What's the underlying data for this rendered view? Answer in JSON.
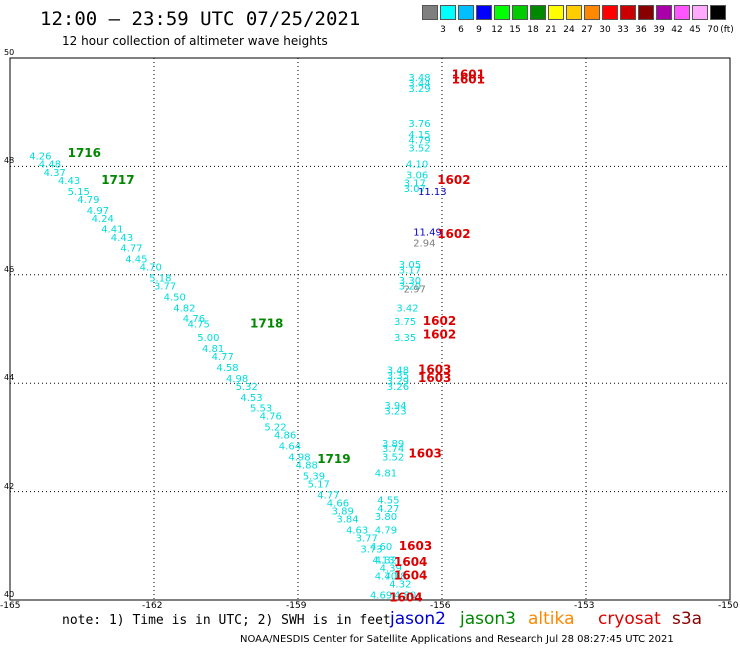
{
  "header": {
    "title": "12:00 — 23:59 UTC 07/25/2021",
    "subtitle": "12 hour collection of altimeter wave heights"
  },
  "scale": {
    "unit": "(ft)",
    "bins": [
      {
        "label": "3",
        "color": "#7f7f7f"
      },
      {
        "label": "6",
        "color": "#00ffff"
      },
      {
        "label": "9",
        "color": "#00bfff"
      },
      {
        "label": "12",
        "color": "#0000ff"
      },
      {
        "label": "15",
        "color": "#00ff00"
      },
      {
        "label": "18",
        "color": "#00cc00"
      },
      {
        "label": "21",
        "color": "#008800"
      },
      {
        "label": "24",
        "color": "#ffff00"
      },
      {
        "label": "27",
        "color": "#ffcc00"
      },
      {
        "label": "30",
        "color": "#ff8800"
      },
      {
        "label": "33",
        "color": "#ff0000"
      },
      {
        "label": "36",
        "color": "#cc0000"
      },
      {
        "label": "39",
        "color": "#880000"
      },
      {
        "label": "42",
        "color": "#aa00aa"
      },
      {
        "label": "45",
        "color": "#ff55ff"
      },
      {
        "label": "70",
        "color": "#ffaaff"
      },
      {
        "label": "",
        "color": "#000000"
      }
    ]
  },
  "chart_data": {
    "type": "scatter",
    "title": "12:00 — 23:59 UTC 07/25/2021",
    "subtitle": "12 hour collection of altimeter wave heights",
    "xlabel": "",
    "ylabel": "",
    "xlim": [
      -165,
      -150
    ],
    "ylim": [
      40,
      50
    ],
    "x_ticks": [
      "-165",
      "-162",
      "-159",
      "-156",
      "-153",
      "-150"
    ],
    "y_ticks": [
      "40",
      "42",
      "44",
      "46",
      "48",
      "50"
    ],
    "grid": true,
    "series": [
      {
        "name": "jason3",
        "color": "#00dddd",
        "points": [
          {
            "x": -164.6,
            "y": 48.2,
            "label": "4.26"
          },
          {
            "x": -164.4,
            "y": 48.05,
            "label": "4.48"
          },
          {
            "x": -164.3,
            "y": 47.9,
            "label": "4.37"
          },
          {
            "x": -164.0,
            "y": 47.75,
            "label": "4.43"
          },
          {
            "x": -163.8,
            "y": 47.55,
            "label": "5.15"
          },
          {
            "x": -163.6,
            "y": 47.4,
            "label": "4.79"
          },
          {
            "x": -163.4,
            "y": 47.2,
            "label": "4.97"
          },
          {
            "x": -163.3,
            "y": 47.05,
            "label": "4.24"
          },
          {
            "x": -163.1,
            "y": 46.85,
            "label": "4.41"
          },
          {
            "x": -162.9,
            "y": 46.7,
            "label": "4.43"
          },
          {
            "x": -162.7,
            "y": 46.5,
            "label": "4.77"
          },
          {
            "x": -162.6,
            "y": 46.3,
            "label": "4.45"
          },
          {
            "x": -162.3,
            "y": 46.15,
            "label": "4.70"
          },
          {
            "x": -162.1,
            "y": 45.95,
            "label": "5.18"
          },
          {
            "x": -162.0,
            "y": 45.8,
            "label": "3.77"
          },
          {
            "x": -161.8,
            "y": 45.6,
            "label": "4.50"
          },
          {
            "x": -161.6,
            "y": 45.4,
            "label": "4.82"
          },
          {
            "x": -161.4,
            "y": 45.2,
            "label": "4.76"
          },
          {
            "x": -161.3,
            "y": 45.1,
            "label": "4.75"
          },
          {
            "x": -161.1,
            "y": 44.85,
            "label": "5.00"
          },
          {
            "x": -161.0,
            "y": 44.65,
            "label": "4.81"
          },
          {
            "x": -160.8,
            "y": 44.5,
            "label": "4.77"
          },
          {
            "x": -160.7,
            "y": 44.3,
            "label": "4.58"
          },
          {
            "x": -160.5,
            "y": 44.1,
            "label": "4.98"
          },
          {
            "x": -160.3,
            "y": 43.95,
            "label": "5.32"
          },
          {
            "x": -160.2,
            "y": 43.75,
            "label": "4.53"
          },
          {
            "x": -160.0,
            "y": 43.55,
            "label": "5.53"
          },
          {
            "x": -159.8,
            "y": 43.4,
            "label": "4.76"
          },
          {
            "x": -159.7,
            "y": 43.2,
            "label": "5.22"
          },
          {
            "x": -159.5,
            "y": 43.05,
            "label": "4.86"
          },
          {
            "x": -159.4,
            "y": 42.85,
            "label": "4.64"
          },
          {
            "x": -159.2,
            "y": 42.65,
            "label": "4.98"
          },
          {
            "x": -159.05,
            "y": 42.5,
            "label": "4.88"
          },
          {
            "x": -158.9,
            "y": 42.3,
            "label": "5.39"
          },
          {
            "x": -158.8,
            "y": 42.15,
            "label": "5.17"
          },
          {
            "x": -158.6,
            "y": 41.95,
            "label": "4.77"
          },
          {
            "x": -158.4,
            "y": 41.8,
            "label": "4.66"
          },
          {
            "x": -158.3,
            "y": 41.65,
            "label": "3.89"
          },
          {
            "x": -158.2,
            "y": 41.5,
            "label": "3.84"
          },
          {
            "x": -158.0,
            "y": 41.3,
            "label": "4.63"
          },
          {
            "x": -157.8,
            "y": 41.15,
            "label": "3.77"
          },
          {
            "x": -157.7,
            "y": 40.95,
            "label": "3.73"
          },
          {
            "x": -157.4,
            "y": 40.75,
            "label": "4.32"
          },
          {
            "x": -157.3,
            "y": 40.6,
            "label": "4.39"
          },
          {
            "x": -157.2,
            "y": 40.45,
            "label": "4.18"
          },
          {
            "x": -157.1,
            "y": 40.3,
            "label": "4.32"
          },
          {
            "x": -157.0,
            "y": 40.1,
            "label": "4.80"
          },
          {
            "x": -156.7,
            "y": 49.65,
            "label": "3.48"
          },
          {
            "x": -156.7,
            "y": 49.55,
            "label": "3.44"
          },
          {
            "x": -156.7,
            "y": 49.45,
            "label": "3.29"
          },
          {
            "x": -156.7,
            "y": 48.8,
            "label": "3.76"
          },
          {
            "x": -156.7,
            "y": 48.6,
            "label": "4.15"
          },
          {
            "x": -156.7,
            "y": 48.5,
            "label": "4.79"
          },
          {
            "x": -156.7,
            "y": 48.35,
            "label": "3.52"
          },
          {
            "x": -156.75,
            "y": 48.05,
            "label": "4.10"
          },
          {
            "x": -156.75,
            "y": 47.85,
            "label": "3.06"
          },
          {
            "x": -156.8,
            "y": 47.7,
            "label": "3.17"
          },
          {
            "x": -156.8,
            "y": 47.6,
            "label": "3.07"
          },
          {
            "x": -156.9,
            "y": 46.2,
            "label": "3.05"
          },
          {
            "x": -156.9,
            "y": 46.1,
            "label": "3.17"
          },
          {
            "x": -156.9,
            "y": 45.9,
            "label": "3.30"
          },
          {
            "x": -156.9,
            "y": 45.8,
            "label": "3.20"
          },
          {
            "x": -156.95,
            "y": 45.4,
            "label": "3.42"
          },
          {
            "x": -157.0,
            "y": 45.15,
            "label": "3.75"
          },
          {
            "x": -157.0,
            "y": 44.85,
            "label": "3.35"
          },
          {
            "x": -157.15,
            "y": 44.25,
            "label": "3.48"
          },
          {
            "x": -157.15,
            "y": 44.15,
            "label": "3.35"
          },
          {
            "x": -157.15,
            "y": 44.05,
            "label": "3.29"
          },
          {
            "x": -157.15,
            "y": 43.95,
            "label": "3.26"
          },
          {
            "x": -157.2,
            "y": 43.6,
            "label": "3.94"
          },
          {
            "x": -157.2,
            "y": 43.5,
            "label": "3.23"
          },
          {
            "x": -157.25,
            "y": 42.9,
            "label": "3.89"
          },
          {
            "x": -157.25,
            "y": 42.8,
            "label": "3.74"
          },
          {
            "x": -157.25,
            "y": 42.65,
            "label": "3.52"
          },
          {
            "x": -157.4,
            "y": 42.35,
            "label": "4.81"
          },
          {
            "x": -157.35,
            "y": 41.85,
            "label": "4.55"
          },
          {
            "x": -157.35,
            "y": 41.7,
            "label": "4.27"
          },
          {
            "x": -157.4,
            "y": 41.55,
            "label": "3.80"
          },
          {
            "x": -157.4,
            "y": 41.3,
            "label": "4.79"
          },
          {
            "x": -157.5,
            "y": 41.0,
            "label": "4.60"
          },
          {
            "x": -157.45,
            "y": 40.75,
            "label": "4.13"
          },
          {
            "x": -157.4,
            "y": 40.45,
            "label": "4.70"
          },
          {
            "x": -157.5,
            "y": 40.1,
            "label": "4.69"
          }
        ]
      },
      {
        "name": "jason2",
        "color": "#0000cc",
        "points": [
          {
            "x": -156.5,
            "y": 47.55,
            "label": "11.13"
          },
          {
            "x": -156.6,
            "y": 46.8,
            "label": "11.49"
          }
        ]
      },
      {
        "name": "gray",
        "color": "#7f7f7f",
        "points": [
          {
            "x": -156.6,
            "y": 46.6,
            "label": "2.94"
          },
          {
            "x": -156.8,
            "y": 45.75,
            "label": "2.97"
          }
        ]
      }
    ],
    "time_labels": [
      {
        "x": -163.8,
        "y": 48.25,
        "label": "1716",
        "color": "#008800"
      },
      {
        "x": -163.1,
        "y": 47.75,
        "label": "1717",
        "color": "#008800"
      },
      {
        "x": -160.0,
        "y": 45.1,
        "label": "1718",
        "color": "#008800"
      },
      {
        "x": -158.6,
        "y": 42.6,
        "label": "1719",
        "color": "#008800"
      },
      {
        "x": -155.8,
        "y": 49.7,
        "label": "1601",
        "color": "#dd0000"
      },
      {
        "x": -155.8,
        "y": 49.6,
        "label": "1601",
        "color": "#dd0000"
      },
      {
        "x": -156.1,
        "y": 47.75,
        "label": "1602",
        "color": "#dd0000"
      },
      {
        "x": -156.1,
        "y": 46.75,
        "label": "1602",
        "color": "#dd0000"
      },
      {
        "x": -156.4,
        "y": 45.15,
        "label": "1602",
        "color": "#dd0000"
      },
      {
        "x": -156.4,
        "y": 44.9,
        "label": "1602",
        "color": "#dd0000"
      },
      {
        "x": -156.5,
        "y": 44.25,
        "label": "1603",
        "color": "#dd0000"
      },
      {
        "x": -156.5,
        "y": 44.1,
        "label": "1603",
        "color": "#dd0000"
      },
      {
        "x": -156.7,
        "y": 42.7,
        "label": "1603",
        "color": "#dd0000"
      },
      {
        "x": -156.9,
        "y": 41.0,
        "label": "1603",
        "color": "#dd0000"
      },
      {
        "x": -157.0,
        "y": 40.7,
        "label": "1604",
        "color": "#dd0000"
      },
      {
        "x": -157.0,
        "y": 40.45,
        "label": "1604",
        "color": "#dd0000"
      },
      {
        "x": -157.1,
        "y": 40.05,
        "label": "1604",
        "color": "#dd0000"
      }
    ]
  },
  "footer": {
    "note": "note: 1) Time is in UTC; 2) SWH is in feet",
    "satellites": [
      {
        "name": "jason2",
        "color": "#0000cc"
      },
      {
        "name": "jason3",
        "color": "#008800"
      },
      {
        "name": "altika",
        "color": "#ff8800"
      },
      {
        "name": "cryosat",
        "color": "#dd0000"
      },
      {
        "name": "s3a",
        "color": "#880000"
      }
    ],
    "credit": "NOAA/NESDIS Center for Satellite Applications and Research   Jul 28 08:27:45 UTC 2021"
  }
}
